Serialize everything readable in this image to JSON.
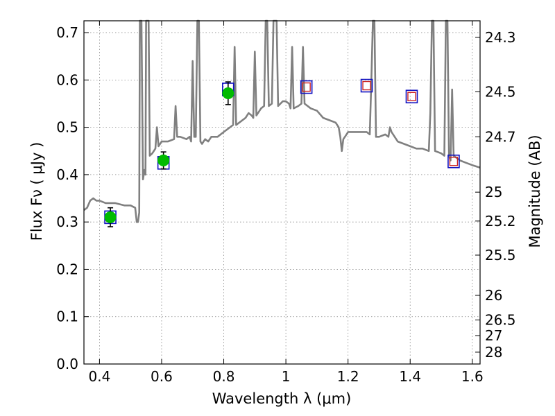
{
  "chart_data": {
    "type": "line",
    "xlabel": "Wavelength  λ (μm)",
    "ylabel": "Flux  Fν  ( μJy )",
    "y2label": "Magnitude (AB)",
    "xlim": [
      0.35,
      1.625
    ],
    "ylim": [
      0.0,
      0.725
    ],
    "grid": true,
    "x_ticks": [
      {
        "value": 0.4,
        "label": "0.4"
      },
      {
        "value": 0.6,
        "label": "0.6"
      },
      {
        "value": 0.8,
        "label": "0.8"
      },
      {
        "value": 1.0,
        "label": "1"
      },
      {
        "value": 1.2,
        "label": "1.2"
      },
      {
        "value": 1.4,
        "label": "1.4"
      },
      {
        "value": 1.6,
        "label": "1.6"
      }
    ],
    "y_ticks": [
      {
        "value": 0.0,
        "label": "0.0"
      },
      {
        "value": 0.1,
        "label": "0.1"
      },
      {
        "value": 0.2,
        "label": "0.2"
      },
      {
        "value": 0.3,
        "label": "0.3"
      },
      {
        "value": 0.4,
        "label": "0.4"
      },
      {
        "value": 0.5,
        "label": "0.5"
      },
      {
        "value": 0.6,
        "label": "0.6"
      },
      {
        "value": 0.7,
        "label": "0.7"
      }
    ],
    "y2_ticks": [
      {
        "flux": 0.69,
        "label": "24.3"
      },
      {
        "flux": 0.575,
        "label": "24.5"
      },
      {
        "flux": 0.48,
        "label": "24.7"
      },
      {
        "flux": 0.363,
        "label": "25"
      },
      {
        "flux": 0.302,
        "label": "25.2"
      },
      {
        "flux": 0.23,
        "label": "25.5"
      },
      {
        "flux": 0.145,
        "label": "26"
      },
      {
        "flux": 0.093,
        "label": "26.5"
      },
      {
        "flux": 0.06,
        "label": "27"
      },
      {
        "flux": 0.025,
        "label": "28"
      }
    ],
    "series": [
      {
        "kind": "model-spectrum",
        "color": "#808080",
        "points": [
          [
            0.35,
            0.325
          ],
          [
            0.36,
            0.33
          ],
          [
            0.37,
            0.345
          ],
          [
            0.38,
            0.35
          ],
          [
            0.39,
            0.345
          ],
          [
            0.4,
            0.345
          ],
          [
            0.42,
            0.34
          ],
          [
            0.45,
            0.34
          ],
          [
            0.48,
            0.335
          ],
          [
            0.5,
            0.335
          ],
          [
            0.515,
            0.33
          ],
          [
            0.52,
            0.3
          ],
          [
            0.524,
            0.3
          ],
          [
            0.528,
            0.32
          ],
          [
            0.53,
            0.725
          ],
          [
            0.535,
            0.725
          ],
          [
            0.54,
            0.39
          ],
          [
            0.545,
            0.41
          ],
          [
            0.548,
            0.4
          ],
          [
            0.55,
            0.725
          ],
          [
            0.558,
            0.725
          ],
          [
            0.562,
            0.44
          ],
          [
            0.57,
            0.445
          ],
          [
            0.58,
            0.455
          ],
          [
            0.585,
            0.5
          ],
          [
            0.59,
            0.46
          ],
          [
            0.6,
            0.47
          ],
          [
            0.62,
            0.47
          ],
          [
            0.64,
            0.475
          ],
          [
            0.645,
            0.545
          ],
          [
            0.65,
            0.48
          ],
          [
            0.66,
            0.48
          ],
          [
            0.68,
            0.475
          ],
          [
            0.69,
            0.48
          ],
          [
            0.695,
            0.47
          ],
          [
            0.7,
            0.64
          ],
          [
            0.705,
            0.48
          ],
          [
            0.71,
            0.48
          ],
          [
            0.715,
            0.725
          ],
          [
            0.72,
            0.725
          ],
          [
            0.725,
            0.47
          ],
          [
            0.73,
            0.465
          ],
          [
            0.74,
            0.475
          ],
          [
            0.75,
            0.47
          ],
          [
            0.76,
            0.48
          ],
          [
            0.78,
            0.48
          ],
          [
            0.8,
            0.49
          ],
          [
            0.82,
            0.5
          ],
          [
            0.83,
            0.505
          ],
          [
            0.835,
            0.67
          ],
          [
            0.84,
            0.505
          ],
          [
            0.85,
            0.51
          ],
          [
            0.87,
            0.52
          ],
          [
            0.88,
            0.53
          ],
          [
            0.89,
            0.525
          ],
          [
            0.895,
            0.52
          ],
          [
            0.9,
            0.66
          ],
          [
            0.905,
            0.525
          ],
          [
            0.92,
            0.54
          ],
          [
            0.93,
            0.545
          ],
          [
            0.935,
            0.725
          ],
          [
            0.94,
            0.725
          ],
          [
            0.945,
            0.545
          ],
          [
            0.955,
            0.55
          ],
          [
            0.96,
            0.725
          ],
          [
            0.97,
            0.725
          ],
          [
            0.975,
            0.545
          ],
          [
            0.99,
            0.555
          ],
          [
            1.0,
            0.555
          ],
          [
            1.01,
            0.55
          ],
          [
            1.015,
            0.54
          ],
          [
            1.02,
            0.67
          ],
          [
            1.025,
            0.54
          ],
          [
            1.04,
            0.545
          ],
          [
            1.05,
            0.55
          ],
          [
            1.055,
            0.67
          ],
          [
            1.06,
            0.55
          ],
          [
            1.08,
            0.54
          ],
          [
            1.1,
            0.535
          ],
          [
            1.12,
            0.52
          ],
          [
            1.14,
            0.515
          ],
          [
            1.16,
            0.51
          ],
          [
            1.17,
            0.5
          ],
          [
            1.175,
            0.48
          ],
          [
            1.18,
            0.45
          ],
          [
            1.185,
            0.475
          ],
          [
            1.19,
            0.48
          ],
          [
            1.2,
            0.49
          ],
          [
            1.22,
            0.49
          ],
          [
            1.24,
            0.49
          ],
          [
            1.26,
            0.49
          ],
          [
            1.27,
            0.485
          ],
          [
            1.275,
            0.6
          ],
          [
            1.28,
            0.725
          ],
          [
            1.285,
            0.725
          ],
          [
            1.29,
            0.48
          ],
          [
            1.3,
            0.48
          ],
          [
            1.32,
            0.485
          ],
          [
            1.33,
            0.48
          ],
          [
            1.335,
            0.5
          ],
          [
            1.34,
            0.49
          ],
          [
            1.36,
            0.47
          ],
          [
            1.38,
            0.465
          ],
          [
            1.4,
            0.46
          ],
          [
            1.42,
            0.455
          ],
          [
            1.44,
            0.455
          ],
          [
            1.46,
            0.45
          ],
          [
            1.465,
            0.53
          ],
          [
            1.47,
            0.725
          ],
          [
            1.475,
            0.725
          ],
          [
            1.48,
            0.45
          ],
          [
            1.5,
            0.445
          ],
          [
            1.51,
            0.44
          ],
          [
            1.515,
            0.725
          ],
          [
            1.52,
            0.725
          ],
          [
            1.525,
            0.44
          ],
          [
            1.53,
            0.43
          ],
          [
            1.535,
            0.58
          ],
          [
            1.54,
            0.44
          ],
          [
            1.56,
            0.43
          ],
          [
            1.58,
            0.425
          ],
          [
            1.6,
            0.42
          ],
          [
            1.625,
            0.415
          ]
        ]
      }
    ],
    "model_points": [
      {
        "x": 0.435,
        "y": 0.31
      },
      {
        "x": 0.606,
        "y": 0.425
      },
      {
        "x": 0.814,
        "y": 0.58
      },
      {
        "x": 1.066,
        "y": 0.585
      },
      {
        "x": 1.26,
        "y": 0.588
      },
      {
        "x": 1.405,
        "y": 0.565
      },
      {
        "x": 1.54,
        "y": 0.428
      }
    ],
    "observed_points": [
      {
        "x": 0.435,
        "y": 0.31,
        "err": 0.02
      },
      {
        "x": 0.606,
        "y": 0.43,
        "err": 0.018
      },
      {
        "x": 0.814,
        "y": 0.572,
        "err": 0.024
      }
    ],
    "upper_limits": [
      {
        "x": 1.066,
        "y": 0.585
      },
      {
        "x": 1.26,
        "y": 0.588
      },
      {
        "x": 1.405,
        "y": 0.565
      },
      {
        "x": 1.54,
        "y": 0.428
      }
    ],
    "colors": {
      "spectrum": "#808080",
      "model_box": "#1010c0",
      "observed": "#00bb00",
      "limit": "#cc2222",
      "grid": "#888888"
    }
  }
}
